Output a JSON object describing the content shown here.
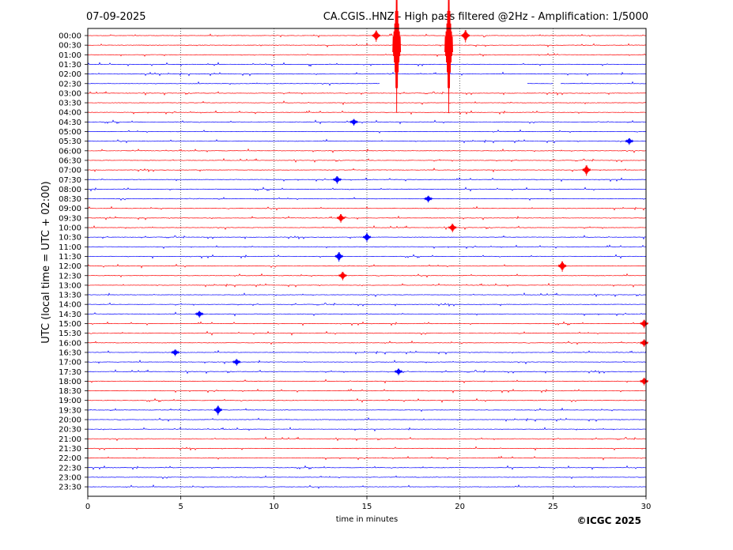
{
  "header": {
    "date": "07-09-2025",
    "title": "CA.CGIS..HNZ - High pass filtered @2Hz - Amplification: 1/5000"
  },
  "footer": {
    "copyright": "©ICGC 2025"
  },
  "colors": {
    "trace_a": "#ff0000",
    "trace_b": "#0000ff",
    "grid": "#000000",
    "background": "#ffffff"
  },
  "chart_data": {
    "type": "line",
    "title": "CA.CGIS..HNZ - High pass filtered @2Hz - Amplification: 1/5000",
    "xlabel": "time in minutes",
    "ylabel": "UTC (local time = UTC + 02:00)",
    "xlim": [
      0,
      30
    ],
    "xticks": [
      "0",
      "5",
      "10",
      "15",
      "20",
      "25",
      "30"
    ],
    "xtick_values": [
      0,
      5,
      10,
      15,
      20,
      25,
      30
    ],
    "vertical_grid_minutes": [
      5,
      10,
      15,
      20,
      25
    ],
    "grid_style": "dotted",
    "row_labels": [
      "00:00",
      "00:30",
      "01:00",
      "01:30",
      "02:00",
      "02:30",
      "03:00",
      "03:30",
      "04:00",
      "04:30",
      "05:00",
      "05:30",
      "06:00",
      "06:30",
      "07:00",
      "07:30",
      "08:00",
      "08:30",
      "09:00",
      "09:30",
      "10:00",
      "10:30",
      "11:00",
      "11:30",
      "12:00",
      "12:30",
      "13:00",
      "13:30",
      "14:00",
      "14:30",
      "15:00",
      "15:30",
      "16:00",
      "16:30",
      "17:00",
      "17:30",
      "18:00",
      "18:30",
      "19:00",
      "19:30",
      "20:00",
      "20:30",
      "21:00",
      "21:30",
      "22:00",
      "22:30",
      "23:00",
      "23:30"
    ],
    "row_color_cycle": [
      "red",
      "red",
      "red",
      "blue",
      "blue",
      "blue"
    ],
    "events": [
      {
        "row": "00:00",
        "minute": 15.5,
        "amplitude": 0.9
      },
      {
        "row": "00:00",
        "minute": 20.3,
        "amplitude": 1.0
      },
      {
        "row": "00:30",
        "minute": 16.6,
        "amplitude": 12.5
      },
      {
        "row": "00:30",
        "minute": 19.4,
        "amplitude": 12.5
      },
      {
        "row": "04:30",
        "minute": 14.3,
        "amplitude": 0.4
      },
      {
        "row": "05:30",
        "minute": 29.1,
        "amplitude": 0.4
      },
      {
        "row": "07:00",
        "minute": 26.8,
        "amplitude": 0.8
      },
      {
        "row": "07:30",
        "minute": 13.4,
        "amplitude": 0.5
      },
      {
        "row": "08:30",
        "minute": 18.3,
        "amplitude": 0.4
      },
      {
        "row": "09:30",
        "minute": 13.6,
        "amplitude": 0.6
      },
      {
        "row": "10:00",
        "minute": 19.6,
        "amplitude": 0.6
      },
      {
        "row": "10:30",
        "minute": 15.0,
        "amplitude": 0.6
      },
      {
        "row": "11:30",
        "minute": 13.5,
        "amplitude": 0.7
      },
      {
        "row": "12:00",
        "minute": 25.5,
        "amplitude": 0.8
      },
      {
        "row": "12:30",
        "minute": 13.7,
        "amplitude": 0.6
      },
      {
        "row": "14:30",
        "minute": 6.0,
        "amplitude": 0.4
      },
      {
        "row": "15:00",
        "minute": 29.9,
        "amplitude": 0.6
      },
      {
        "row": "16:00",
        "minute": 29.9,
        "amplitude": 0.5
      },
      {
        "row": "16:30",
        "minute": 4.7,
        "amplitude": 0.4
      },
      {
        "row": "17:00",
        "minute": 8.0,
        "amplitude": 0.4
      },
      {
        "row": "17:30",
        "minute": 16.7,
        "amplitude": 0.4
      },
      {
        "row": "18:00",
        "minute": 29.9,
        "amplitude": 0.5
      },
      {
        "row": "19:30",
        "minute": 7.0,
        "amplitude": 0.7
      }
    ],
    "gaps": [
      {
        "row": "02:30",
        "from_minute": 15.7,
        "to_minute": 23.6
      },
      {
        "row": "02:30",
        "from_minute": 25.0,
        "to_minute": 25.4
      }
    ]
  }
}
